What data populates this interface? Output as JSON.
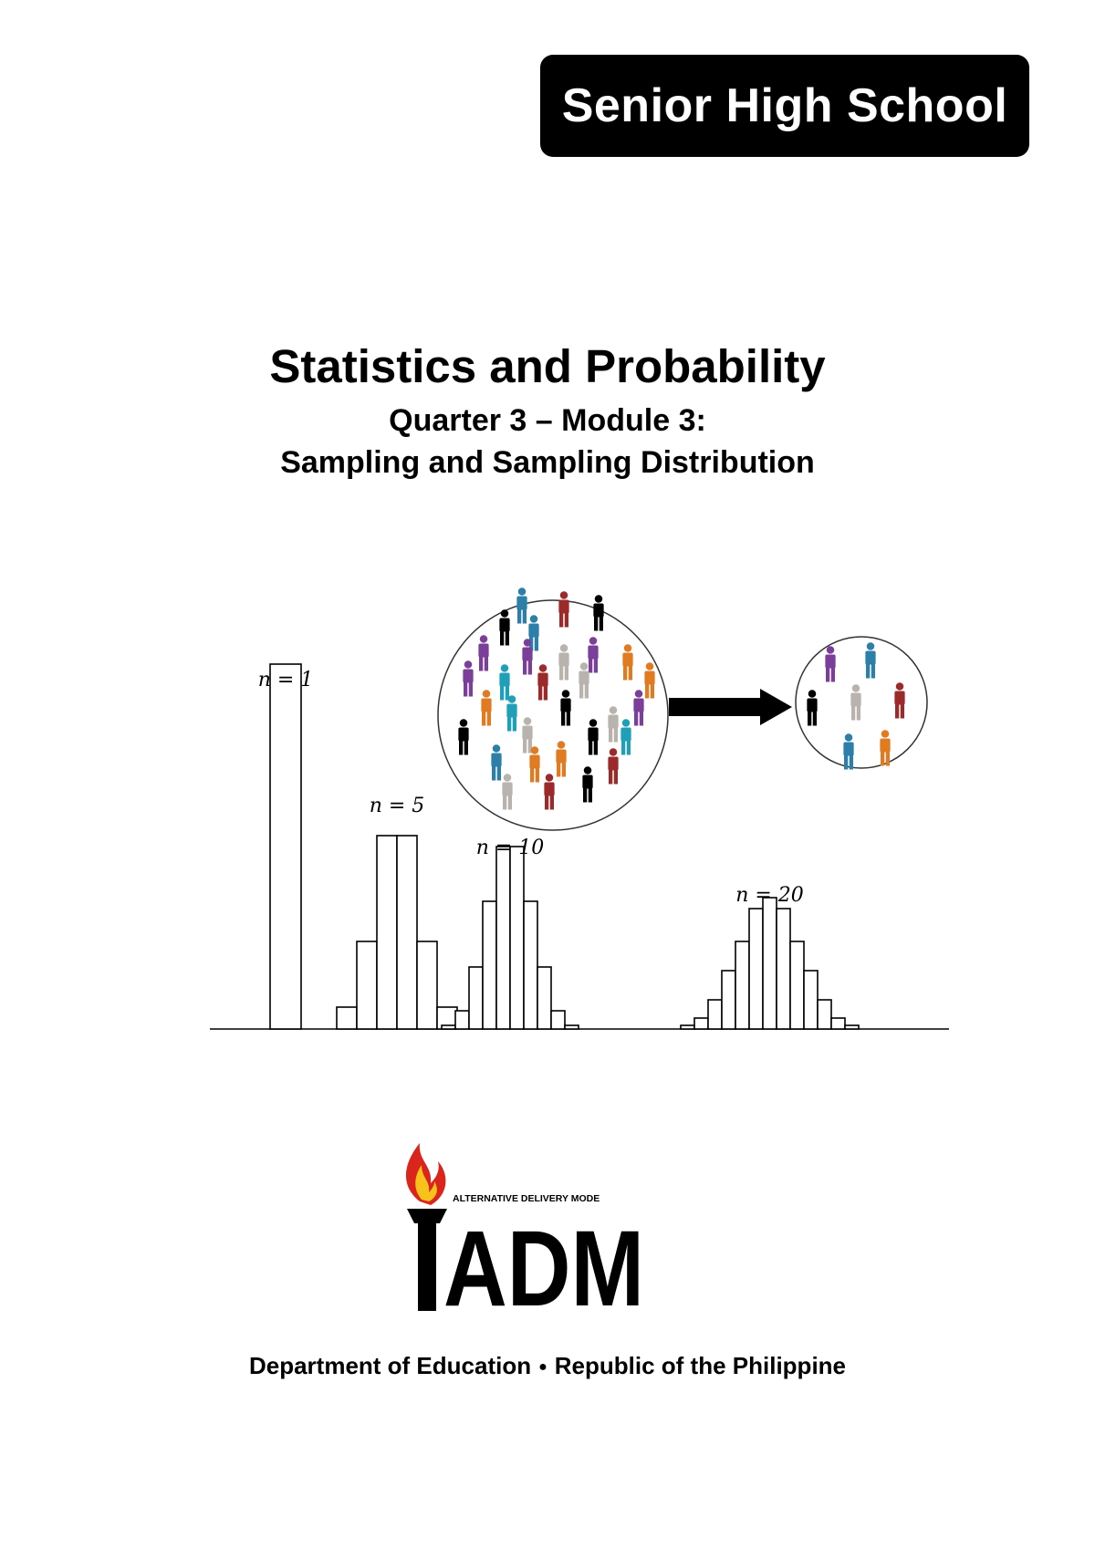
{
  "badge": {
    "label": "Senior High School"
  },
  "title": "Statistics and Probability",
  "subtitle_1": "Quarter 3 – Module 3:",
  "subtitle_2": "Sampling and Sampling Distribution",
  "figure": {
    "histograms": [
      {
        "label": "n = 1",
        "heights": [
          1.0
        ]
      },
      {
        "label": "n = 5",
        "heights": [
          0.06,
          0.24,
          0.53,
          0.53,
          0.24,
          0.06
        ]
      },
      {
        "label": "n = 10",
        "heights": [
          0.01,
          0.05,
          0.17,
          0.35,
          0.5,
          0.5,
          0.35,
          0.17,
          0.05,
          0.01
        ]
      },
      {
        "label": "n = 20",
        "heights": [
          0.01,
          0.03,
          0.08,
          0.16,
          0.24,
          0.33,
          0.36,
          0.33,
          0.24,
          0.16,
          0.08,
          0.03,
          0.01
        ]
      }
    ],
    "people_colors": [
      "#000000",
      "#7b3f99",
      "#2b7fa8",
      "#9c2a2a",
      "#e07b21",
      "#b8b4ad",
      "#1fa0b8"
    ],
    "population_icon": "population-circle-icon",
    "sample_icon": "sample-circle-icon",
    "arrow_icon": "arrow-right-icon"
  },
  "logo": {
    "tagline": "ALTERNATIVE DELIVERY MODE",
    "letters": "ADM",
    "flame_colors": [
      "#d9251c",
      "#f6c21b"
    ]
  },
  "footer": {
    "left": "Department of Education",
    "bullet": "●",
    "right": "Republic of the Philippine"
  }
}
